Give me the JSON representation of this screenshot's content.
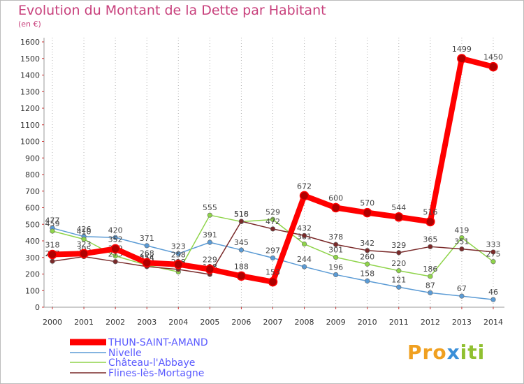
{
  "title": "Evolution du Montant de la Dette par Habitant",
  "subtitle": "(en €)",
  "logo": {
    "part1": "Pro",
    "part2": "x",
    "part3": "iti"
  },
  "chart_data": {
    "type": "line",
    "x": [
      "2000",
      "2001",
      "2002",
      "2003",
      "2004",
      "2005",
      "2006",
      "2007",
      "2008",
      "2009",
      "2010",
      "2011",
      "2012",
      "2013",
      "2014"
    ],
    "ylim": [
      0,
      1600
    ],
    "yticks": [
      0,
      100,
      200,
      300,
      400,
      500,
      600,
      700,
      800,
      900,
      1000,
      1100,
      1200,
      1300,
      1400,
      1500,
      1600
    ],
    "grid": "dotted-vertical",
    "legend_position": "bottom-left",
    "series": [
      {
        "name": "THUN-SAINT-AMAND",
        "color": "#ff0000",
        "values": [
          318,
          323,
          352,
          268,
          258,
          229,
          188,
          153,
          672,
          600,
          570,
          544,
          516,
          1499,
          1450
        ],
        "labels": [
          "318",
          "323",
          "352",
          "268",
          "258",
          "229",
          "188",
          "153",
          "672",
          "600",
          "570",
          "544",
          "516",
          "1499",
          "1450"
        ]
      },
      {
        "name": "Nivelle",
        "color": "#5b9bd5",
        "values": [
          477,
          426,
          420,
          371,
          323,
          391,
          345,
          297,
          244,
          196,
          158,
          121,
          87,
          67,
          46
        ],
        "labels": [
          "477",
          "426",
          "420",
          "371",
          "323",
          "391",
          "345",
          "297",
          "244",
          "196",
          "158",
          "121",
          "87",
          "67",
          "46"
        ]
      },
      {
        "name": "Château-l'Abbaye",
        "color": "#8fd44a",
        "values": [
          459,
          410,
          309,
          254,
          213,
          555,
          516,
          529,
          381,
          301,
          260,
          220,
          186,
          419,
          275
        ],
        "labels": [
          "459",
          "410",
          "309",
          "254",
          "213",
          "555",
          "516",
          "529",
          "381",
          "301",
          "260",
          "220",
          "186",
          "419",
          "275"
        ]
      },
      {
        "name": "Flines-lès-Mortagne",
        "color": "#7a2a2a",
        "values": [
          277,
          305,
          275,
          245,
          228,
          198,
          518,
          472,
          432,
          378,
          342,
          329,
          365,
          351,
          333
        ],
        "labels": [
          "277",
          "305",
          "275",
          "245",
          "228",
          "198",
          "518",
          "472",
          "432",
          "378",
          "342",
          "329",
          "365",
          "351",
          "333"
        ]
      }
    ]
  }
}
